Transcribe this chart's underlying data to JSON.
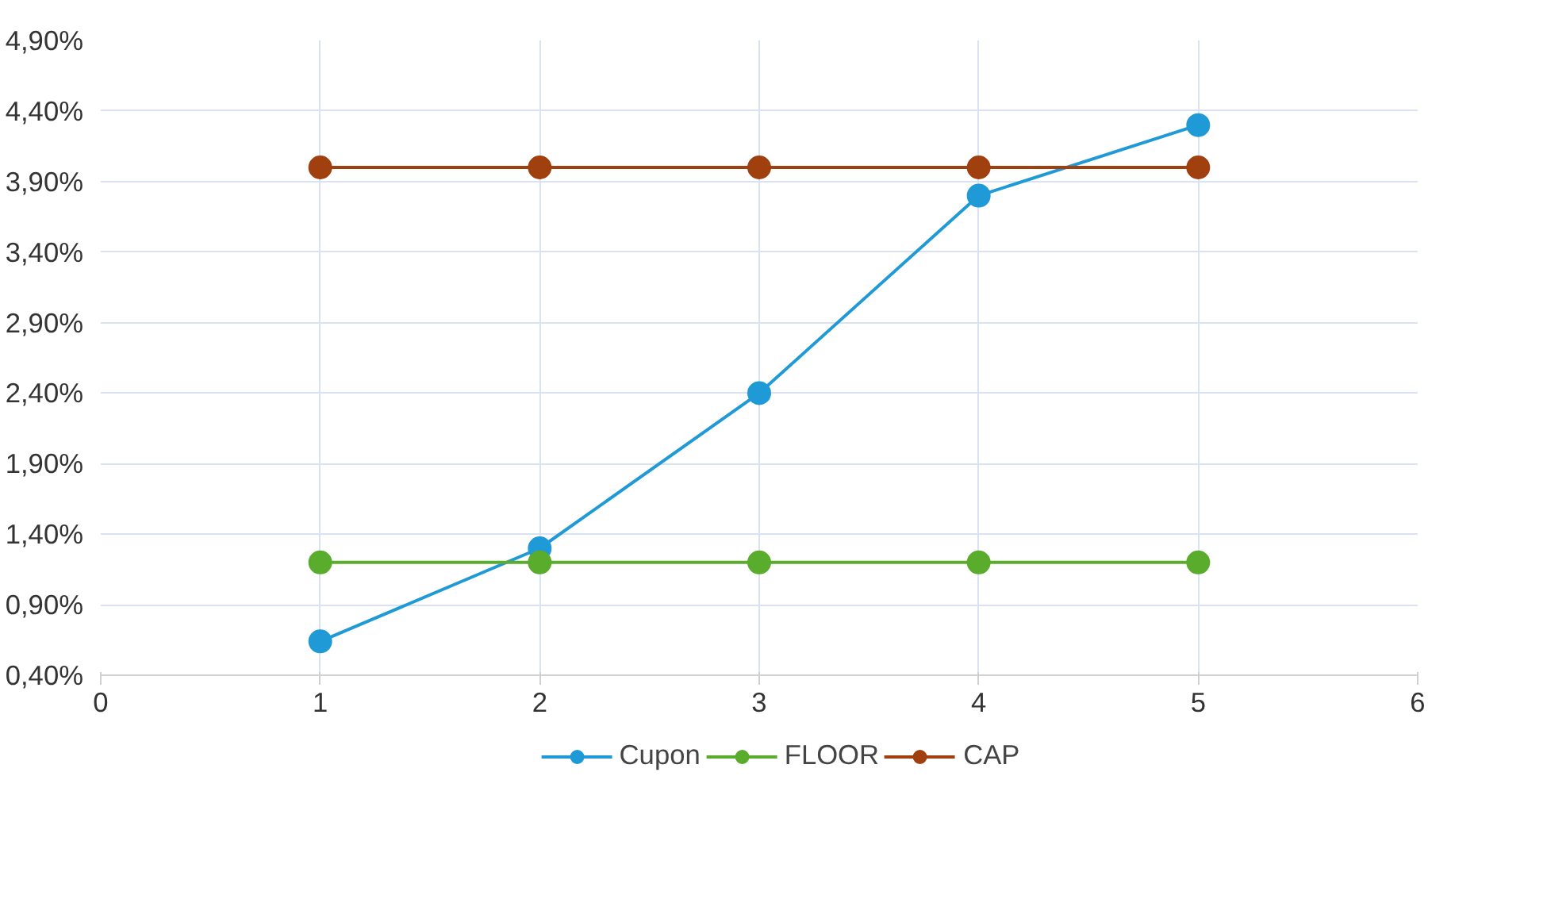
{
  "chart_data": {
    "type": "line",
    "x": [
      1,
      2,
      3,
      4,
      5
    ],
    "series": [
      {
        "name": "Cupon",
        "color": "#1f9ad6",
        "values": [
          0.64,
          1.3,
          2.4,
          3.8,
          4.3
        ]
      },
      {
        "name": "FLOOR",
        "color": "#5aac2c",
        "values": [
          1.2,
          1.2,
          1.2,
          1.2,
          1.2
        ]
      },
      {
        "name": "CAP",
        "color": "#a0400f",
        "values": [
          4.0,
          4.0,
          4.0,
          4.0,
          4.0
        ]
      }
    ],
    "xlim": [
      0,
      6
    ],
    "xticks": [
      0,
      1,
      2,
      3,
      4,
      5,
      6
    ],
    "ylim": [
      0.4,
      4.9
    ],
    "yticks": [
      {
        "value": 0.4,
        "label": "0,40%"
      },
      {
        "value": 0.9,
        "label": "0,90%"
      },
      {
        "value": 1.4,
        "label": "1,40%"
      },
      {
        "value": 1.9,
        "label": "1,90%"
      },
      {
        "value": 2.4,
        "label": "2,40%"
      },
      {
        "value": 2.9,
        "label": "2,90%"
      },
      {
        "value": 3.4,
        "label": "3,40%"
      },
      {
        "value": 3.9,
        "label": "3,90%"
      },
      {
        "value": 4.4,
        "label": "4,40%"
      },
      {
        "value": 4.9,
        "label": "4,90%"
      }
    ],
    "grid": true,
    "legend": "bottom",
    "marker": "circle",
    "line_style": "solid"
  }
}
